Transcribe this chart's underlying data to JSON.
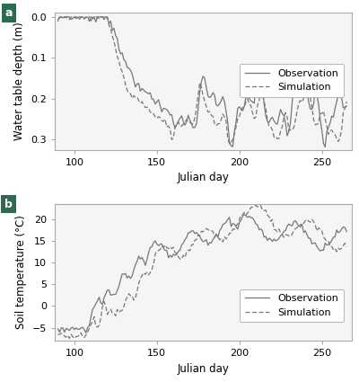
{
  "panel_a": {
    "xlabel": "Julian day",
    "ylabel": "Water table depth (m)",
    "xlim": [
      88,
      268
    ],
    "ylim": [
      0.325,
      -0.01
    ],
    "xticks": [
      100,
      150,
      200,
      250
    ],
    "yticks": [
      0.0,
      0.1,
      0.2,
      0.3
    ],
    "label": "a"
  },
  "panel_b": {
    "xlabel": "Julian day",
    "ylabel": "Soil temperature (°C)",
    "xlim": [
      88,
      268
    ],
    "ylim": [
      -8.0,
      23.5
    ],
    "xticks": [
      100,
      150,
      200,
      250
    ],
    "yticks": [
      -5,
      0,
      5,
      10,
      15,
      20
    ],
    "label": "b"
  },
  "line_color": "#777777",
  "obs_lw": 0.9,
  "sim_lw": 0.9,
  "label_bg": "#2d6a4f",
  "label_fg": "#ffffff",
  "legend_labels": [
    "Observation",
    "Simulation"
  ],
  "fontsize": 8.5,
  "tick_fontsize": 8,
  "spine_color": "#aaaaaa",
  "bg_color": "#f5f5f5"
}
